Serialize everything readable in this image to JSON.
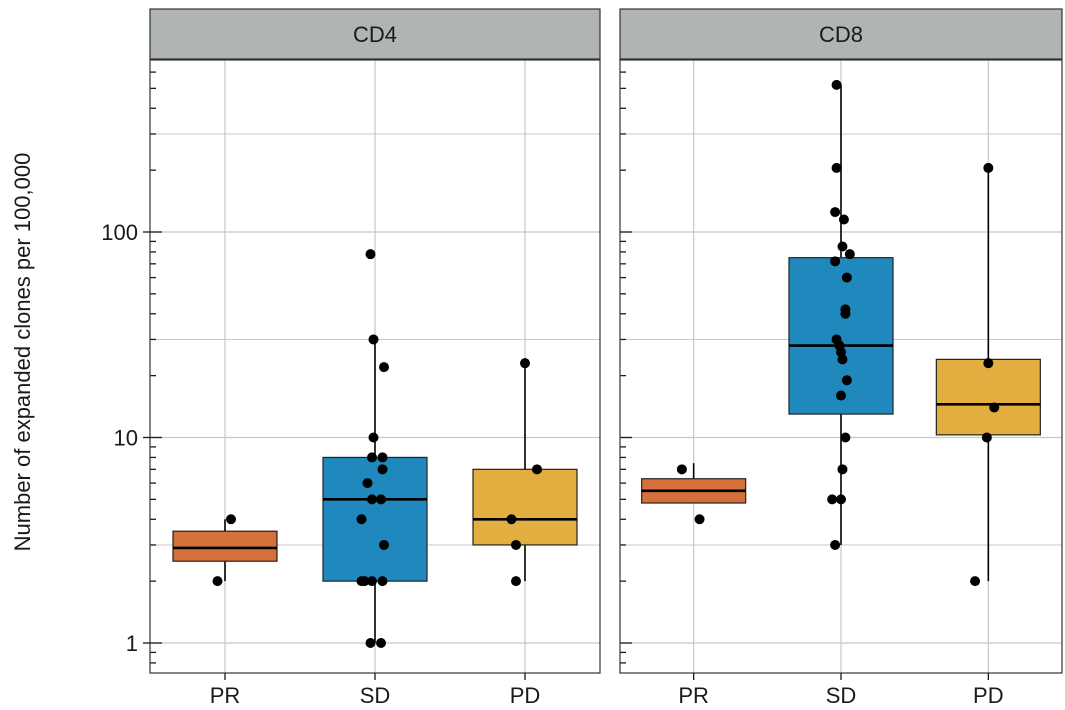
{
  "chart_data": {
    "type": "boxplot",
    "ylabel": "Number of expanded clones per 100,000",
    "xlabel": "",
    "yscale": "log10",
    "ylim": [
      0.72,
      900
    ],
    "y_tick_labels": [
      {
        "value": 1,
        "label": "1"
      },
      {
        "value": 10,
        "label": "10"
      },
      {
        "value": 100,
        "label": "100"
      }
    ],
    "categories": [
      "PR",
      "SD",
      "PD"
    ],
    "colors": {
      "PR": "#d5703a",
      "SD": "#1f88bd",
      "PD": "#e2ae40",
      "strip": "#b0b5b3",
      "grid": "#c8c8c8"
    },
    "grid": true,
    "panels": [
      {
        "label": "CD4",
        "boxes": [
          {
            "category": "PR",
            "whisker_low": 2.0,
            "q1": 2.5,
            "median": 2.9,
            "q3": 3.5,
            "whisker_high": 4.0,
            "points": [
              {
                "y": 2.0,
                "dx": -0.05
              },
              {
                "y": 4.0,
                "dx": 0.04
              }
            ]
          },
          {
            "category": "SD",
            "whisker_low": 1.0,
            "q1": 2.0,
            "median": 5.0,
            "q3": 8.0,
            "whisker_high": 30.0,
            "points": [
              {
                "y": 78.0,
                "dx": -0.03
              },
              {
                "y": 30.0,
                "dx": -0.01
              },
              {
                "y": 22.0,
                "dx": 0.06
              },
              {
                "y": 10.0,
                "dx": -0.01
              },
              {
                "y": 8.0,
                "dx": -0.02
              },
              {
                "y": 8.0,
                "dx": 0.05
              },
              {
                "y": 7.0,
                "dx": 0.05
              },
              {
                "y": 6.0,
                "dx": -0.05
              },
              {
                "y": 5.0,
                "dx": -0.02
              },
              {
                "y": 5.0,
                "dx": 0.04
              },
              {
                "y": 4.0,
                "dx": -0.09
              },
              {
                "y": 3.0,
                "dx": 0.06
              },
              {
                "y": 2.0,
                "dx": -0.09
              },
              {
                "y": 2.0,
                "dx": -0.07
              },
              {
                "y": 2.0,
                "dx": -0.02
              },
              {
                "y": 2.0,
                "dx": 0.05
              },
              {
                "y": 1.0,
                "dx": -0.03
              },
              {
                "y": 1.0,
                "dx": 0.04
              }
            ]
          },
          {
            "category": "PD",
            "whisker_low": 2.0,
            "q1": 3.0,
            "median": 4.0,
            "q3": 7.0,
            "whisker_high": 23.0,
            "points": [
              {
                "y": 23.0,
                "dx": 0.0
              },
              {
                "y": 7.0,
                "dx": 0.08
              },
              {
                "y": 4.0,
                "dx": -0.09
              },
              {
                "y": 3.0,
                "dx": -0.06
              },
              {
                "y": 2.0,
                "dx": -0.06
              }
            ]
          }
        ]
      },
      {
        "label": "CD8",
        "boxes": [
          {
            "category": "PR",
            "whisker_low": 4.8,
            "q1": 4.8,
            "median": 5.5,
            "q3": 6.3,
            "whisker_high": 7.5,
            "points": [
              {
                "y": 7.0,
                "dx": -0.08
              },
              {
                "y": 4.0,
                "dx": 0.04
              }
            ]
          },
          {
            "category": "SD",
            "whisker_low": 3.0,
            "q1": 13.0,
            "median": 28.0,
            "q3": 75.0,
            "whisker_high": 520.0,
            "points": [
              {
                "y": 520.0,
                "dx": -0.03
              },
              {
                "y": 205.0,
                "dx": -0.03
              },
              {
                "y": 125.0,
                "dx": -0.04
              },
              {
                "y": 115.0,
                "dx": 0.02
              },
              {
                "y": 85.0,
                "dx": 0.01
              },
              {
                "y": 78.0,
                "dx": 0.06
              },
              {
                "y": 72.0,
                "dx": -0.04
              },
              {
                "y": 60.0,
                "dx": 0.04
              },
              {
                "y": 42.0,
                "dx": 0.03
              },
              {
                "y": 40.0,
                "dx": 0.03
              },
              {
                "y": 30.0,
                "dx": -0.03
              },
              {
                "y": 28.0,
                "dx": -0.01
              },
              {
                "y": 26.0,
                "dx": 0.0
              },
              {
                "y": 24.0,
                "dx": 0.01
              },
              {
                "y": 19.0,
                "dx": 0.04
              },
              {
                "y": 16.0,
                "dx": 0.0
              },
              {
                "y": 10.0,
                "dx": 0.03
              },
              {
                "y": 7.0,
                "dx": 0.01
              },
              {
                "y": 5.0,
                "dx": -0.06
              },
              {
                "y": 5.0,
                "dx": 0.0
              },
              {
                "y": 3.0,
                "dx": -0.04
              }
            ]
          },
          {
            "category": "PD",
            "whisker_low": 2.0,
            "q1": 10.3,
            "median": 14.5,
            "q3": 24.0,
            "whisker_high": 205.0,
            "points": [
              {
                "y": 205.0,
                "dx": 0.0
              },
              {
                "y": 23.0,
                "dx": 0.0
              },
              {
                "y": 14.0,
                "dx": 0.04
              },
              {
                "y": 10.0,
                "dx": -0.01
              },
              {
                "y": 2.0,
                "dx": -0.09
              }
            ]
          }
        ]
      }
    ]
  }
}
